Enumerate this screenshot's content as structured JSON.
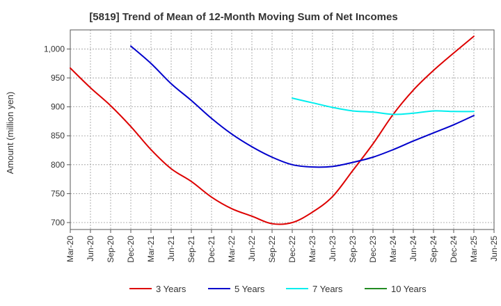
{
  "chart_data": {
    "type": "line",
    "title": "[5819]  Trend of Mean of 12-Month Moving Sum of Net Incomes",
    "xlabel": "",
    "ylabel": "Amount (million yen)",
    "ylim": [
      688,
      1033
    ],
    "yticks": [
      700,
      750,
      800,
      850,
      900,
      950,
      1000
    ],
    "ytick_labels": [
      "700",
      "750",
      "800",
      "850",
      "900",
      "950",
      "1,000"
    ],
    "x_ticks": [
      "Mar-20",
      "Jun-20",
      "Sep-20",
      "Dec-20",
      "Mar-21",
      "Jun-21",
      "Sep-21",
      "Dec-21",
      "Mar-22",
      "Jun-22",
      "Sep-22",
      "Dec-22",
      "Mar-23",
      "Jun-23",
      "Sep-23",
      "Dec-23",
      "Mar-24",
      "Jun-24",
      "Sep-24",
      "Dec-24",
      "Mar-25",
      "Jun-25"
    ],
    "grid": true,
    "legend_position": "bottom",
    "series": [
      {
        "name": "3 Years",
        "color": "#dd0000",
        "x": [
          "Mar-20",
          "Jun-20",
          "Sep-20",
          "Dec-20",
          "Mar-21",
          "Jun-21",
          "Sep-21",
          "Dec-21",
          "Mar-22",
          "Jun-22",
          "Sep-22",
          "Dec-22",
          "Mar-23",
          "Jun-23",
          "Sep-23",
          "Dec-23",
          "Mar-24",
          "Jun-24",
          "Sep-24",
          "Dec-24",
          "Mar-25"
        ],
        "values": [
          967,
          933,
          902,
          866,
          826,
          793,
          771,
          744,
          724,
          711,
          698,
          700,
          718,
          745,
          790,
          836,
          887,
          929,
          963,
          993,
          1022
        ]
      },
      {
        "name": "5 Years",
        "color": "#0000cc",
        "x": [
          "Dec-20",
          "Mar-21",
          "Jun-21",
          "Sep-21",
          "Dec-21",
          "Mar-22",
          "Jun-22",
          "Sep-22",
          "Dec-22",
          "Mar-23",
          "Jun-23",
          "Sep-23",
          "Dec-23",
          "Mar-24",
          "Jun-24",
          "Sep-24",
          "Dec-24",
          "Mar-25"
        ],
        "values": [
          1005,
          975,
          940,
          911,
          880,
          853,
          831,
          813,
          800,
          796,
          797,
          804,
          813,
          826,
          841,
          855,
          869,
          885
        ]
      },
      {
        "name": "7 Years",
        "color": "#00eeee",
        "x": [
          "Dec-22",
          "Mar-23",
          "Jun-23",
          "Sep-23",
          "Dec-23",
          "Mar-24",
          "Jun-24",
          "Sep-24",
          "Dec-24",
          "Mar-25"
        ],
        "values": [
          915,
          907,
          899,
          893,
          891,
          887,
          889,
          893,
          892,
          892
        ]
      },
      {
        "name": "10 Years",
        "color": "#228b22",
        "x": [],
        "values": []
      }
    ]
  }
}
